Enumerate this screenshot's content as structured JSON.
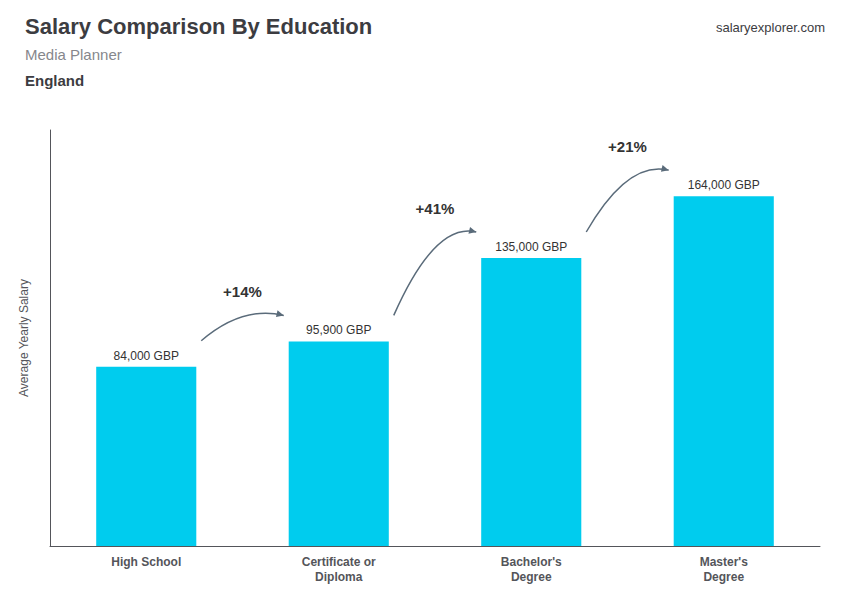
{
  "chart_data": {
    "type": "bar",
    "title": "Salary Comparison By Education",
    "subtitle": "Media Planner",
    "ylabel": "Average Yearly Salary",
    "categories": [
      "High School",
      "Certificate or\nDiploma",
      "Bachelor's\nDegree",
      "Master's\nDegree"
    ],
    "values": [
      84000,
      95900,
      135000,
      164000
    ],
    "value_labels": [
      "84,000 GBP",
      "95,900 GBP",
      "135,000 GBP",
      "164,000 GBP"
    ],
    "data_labels": true,
    "color": "#00ccee",
    "ylim": [
      0,
      195000
    ],
    "grid": false,
    "tick_labels": "x",
    "annotations": [
      "England",
      "salaryexplorer.com",
      {
        "text": "+14%",
        "from": "High School",
        "to": "Certificate or\nDiploma"
      },
      {
        "text": "+41%",
        "from": "Certificate or\nDiploma",
        "to": "Bachelor's\nDegree"
      },
      {
        "text": "+21%",
        "from": "Bachelor's\nDegree",
        "to": "Master's\nDegree"
      }
    ]
  }
}
